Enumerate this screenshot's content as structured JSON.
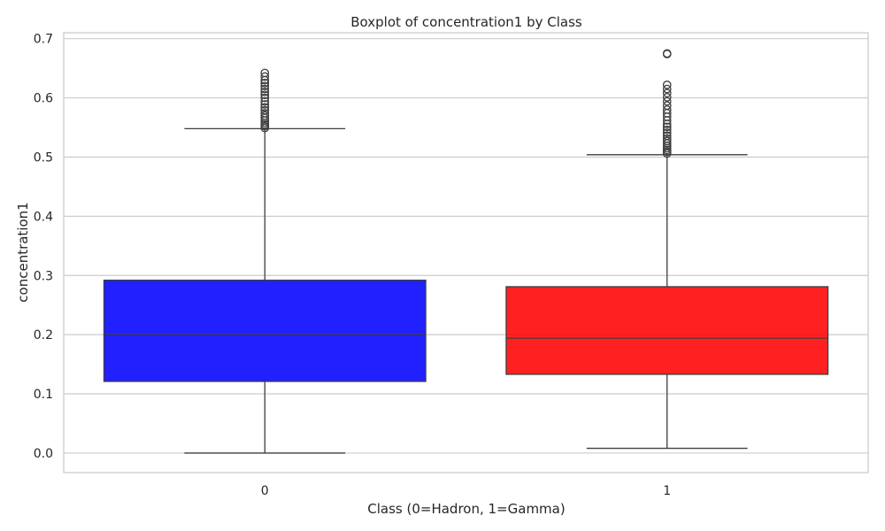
{
  "chart_data": {
    "type": "box",
    "title": "Boxplot of concentration1 by Class",
    "xlabel": "Class (0=Hadron, 1=Gamma)",
    "ylabel": "concentration1",
    "ylim": [
      -0.033,
      0.71
    ],
    "yticks": [
      0.0,
      0.1,
      0.2,
      0.3,
      0.4,
      0.5,
      0.6,
      0.7
    ],
    "ytick_labels": [
      "0.0",
      "0.1",
      "0.2",
      "0.3",
      "0.4",
      "0.5",
      "0.6",
      "0.7"
    ],
    "grid": true,
    "categories": [
      "0",
      "1"
    ],
    "boxes": [
      {
        "category": "0",
        "color": "#0000ff",
        "whisker_low": 0.0,
        "q1": 0.121,
        "median": 0.201,
        "q3": 0.292,
        "whisker_high": 0.548,
        "outliers": [
          0.549,
          0.552,
          0.555,
          0.558,
          0.562,
          0.566,
          0.57,
          0.574,
          0.579,
          0.584,
          0.589,
          0.594,
          0.6,
          0.605,
          0.61,
          0.615,
          0.62,
          0.625,
          0.63,
          0.636,
          0.642
        ]
      },
      {
        "category": "1",
        "color": "#ff0000",
        "whisker_low": 0.008,
        "q1": 0.133,
        "median": 0.194,
        "q3": 0.281,
        "whisker_high": 0.504,
        "outliers": [
          0.506,
          0.509,
          0.512,
          0.515,
          0.519,
          0.523,
          0.527,
          0.531,
          0.536,
          0.541,
          0.546,
          0.551,
          0.556,
          0.562,
          0.568,
          0.574,
          0.58,
          0.587,
          0.594,
          0.601,
          0.608,
          0.615,
          0.622,
          0.674,
          0.675
        ]
      }
    ]
  }
}
